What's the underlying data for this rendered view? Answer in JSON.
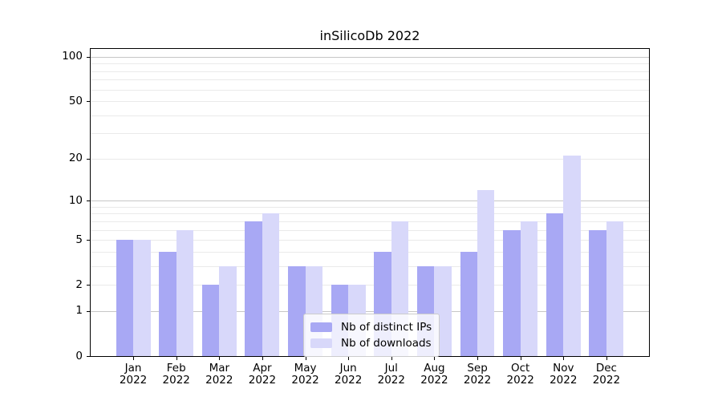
{
  "chart_data": {
    "type": "bar",
    "title": "inSilicoDb 2022",
    "categories": [
      "Jan",
      "Feb",
      "Mar",
      "Apr",
      "May",
      "Jun",
      "Jul",
      "Aug",
      "Sep",
      "Oct",
      "Nov",
      "Dec"
    ],
    "category_year": "2022",
    "series": [
      {
        "name": "Nb of distinct IPs",
        "color": "#a8a8f4",
        "values": [
          5,
          4,
          2,
          7,
          3,
          2,
          4,
          3,
          4,
          6,
          8,
          6
        ]
      },
      {
        "name": "Nb of downloads",
        "color": "#d8d8fa",
        "values": [
          5,
          6,
          3,
          8,
          3,
          2,
          7,
          3,
          12,
          7,
          21,
          7
        ]
      }
    ],
    "y_axis": {
      "scale": "log1p",
      "labeled_ticks": [
        0,
        1,
        2,
        5,
        10,
        20,
        50,
        100
      ],
      "major_gridlines": [
        1,
        10,
        100
      ],
      "minor_gridlines": [
        2,
        3,
        4,
        5,
        6,
        7,
        8,
        9,
        20,
        30,
        40,
        50,
        60,
        70,
        80,
        90
      ],
      "ylim": [
        0,
        113
      ]
    },
    "legend": {
      "position": "lower center"
    },
    "colors": {
      "major_grid": "#c6c6c6",
      "minor_grid": "#eaeaea",
      "axis": "#000000",
      "text": "#000000",
      "legend_border": "#cccccc"
    }
  }
}
